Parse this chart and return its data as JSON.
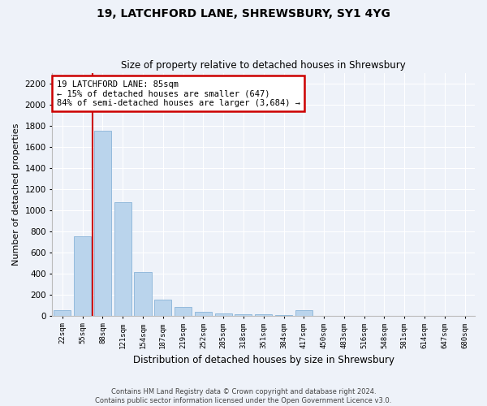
{
  "title1": "19, LATCHFORD LANE, SHREWSBURY, SY1 4YG",
  "title2": "Size of property relative to detached houses in Shrewsbury",
  "xlabel": "Distribution of detached houses by size in Shrewsbury",
  "ylabel": "Number of detached properties",
  "footer1": "Contains HM Land Registry data © Crown copyright and database right 2024.",
  "footer2": "Contains public sector information licensed under the Open Government Licence v3.0.",
  "annotation_title": "19 LATCHFORD LANE: 85sqm",
  "annotation_line1": "← 15% of detached houses are smaller (647)",
  "annotation_line2": "84% of semi-detached houses are larger (3,684) →",
  "bar_labels": [
    "22sqm",
    "55sqm",
    "88sqm",
    "121sqm",
    "154sqm",
    "187sqm",
    "219sqm",
    "252sqm",
    "285sqm",
    "318sqm",
    "351sqm",
    "384sqm",
    "417sqm",
    "450sqm",
    "483sqm",
    "516sqm",
    "548sqm",
    "581sqm",
    "614sqm",
    "647sqm",
    "680sqm"
  ],
  "bar_values": [
    50,
    750,
    1750,
    1075,
    415,
    155,
    80,
    35,
    25,
    15,
    10,
    5,
    50,
    0,
    0,
    0,
    0,
    0,
    0,
    0,
    0
  ],
  "bar_color": "#bad4ec",
  "bar_edge_color": "#8ab4d8",
  "vline_color": "#cc0000",
  "vline_x_idx": 1.5,
  "annotation_box_color": "#cc0000",
  "background_color": "#eef2f9",
  "ylim": [
    0,
    2300
  ],
  "yticks": [
    0,
    200,
    400,
    600,
    800,
    1000,
    1200,
    1400,
    1600,
    1800,
    2000,
    2200
  ],
  "grid_color": "#ffffff",
  "figsize": [
    6.0,
    5.0
  ],
  "dpi": 100
}
